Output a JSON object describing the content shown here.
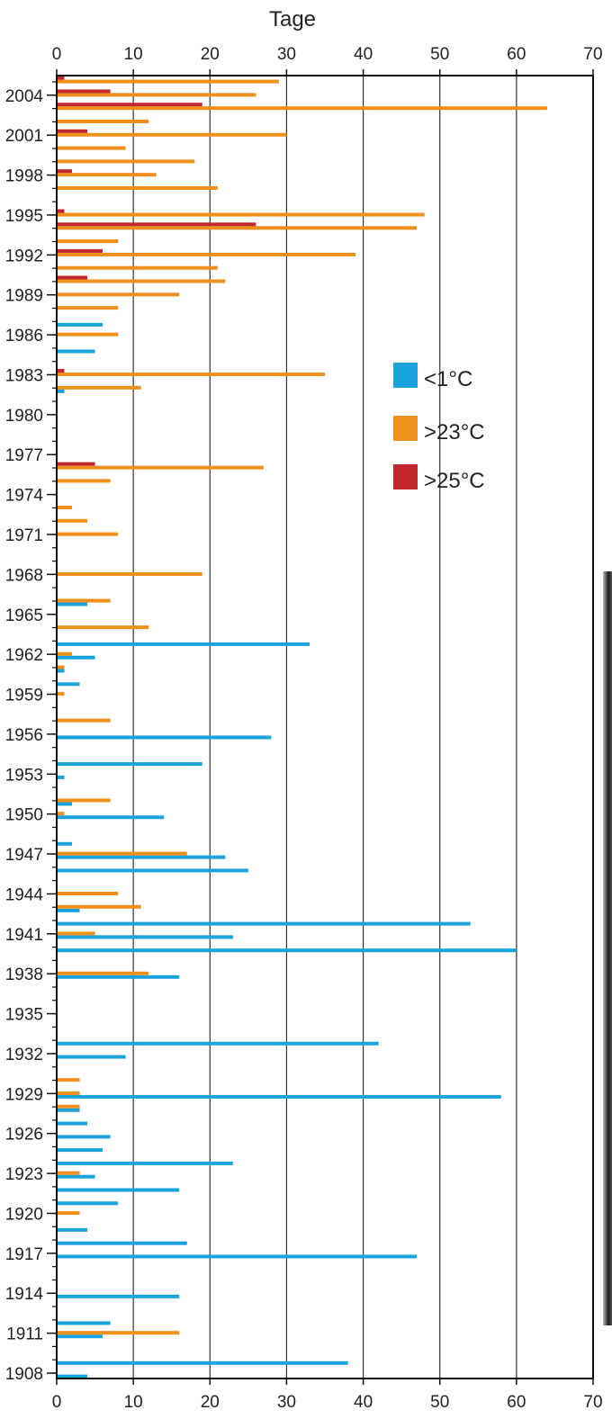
{
  "chart_data": {
    "type": "bar",
    "orientation": "horizontal",
    "title": "",
    "xlabel": "Tage",
    "ylabel": "",
    "xlim": [
      0,
      70
    ],
    "ylim": [
      1907,
      2005
    ],
    "x_ticks": [
      "0",
      "10",
      "20",
      "30",
      "40",
      "50",
      "60",
      "70"
    ],
    "y_tick_labels": [
      "2004",
      "2001",
      "1998",
      "1995",
      "1992",
      "1989",
      "1986",
      "1983",
      "1980",
      "1977",
      "1974",
      "1971",
      "1968",
      "1965",
      "1962",
      "1959",
      "1956",
      "1953",
      "1950",
      "1947",
      "1944",
      "1941",
      "1938",
      "1935",
      "1932",
      "1929",
      "1926",
      "1923",
      "1920",
      "1917",
      "1914",
      "1911",
      "1908"
    ],
    "grid": "vertical lines at each major x tick",
    "legend_position": "right, upper middle",
    "series": [
      {
        "name": "<1°C",
        "color": "#1aa3dc",
        "points": [
          {
            "year": 1908,
            "value": 4
          },
          {
            "year": 1909,
            "value": 38
          },
          {
            "year": 1911,
            "value": 6
          },
          {
            "year": 1912,
            "value": 7
          },
          {
            "year": 1914,
            "value": 16
          },
          {
            "year": 1917,
            "value": 47
          },
          {
            "year": 1918,
            "value": 17
          },
          {
            "year": 1919,
            "value": 4
          },
          {
            "year": 1921,
            "value": 8
          },
          {
            "year": 1922,
            "value": 16
          },
          {
            "year": 1923,
            "value": 5
          },
          {
            "year": 1924,
            "value": 23
          },
          {
            "year": 1925,
            "value": 6
          },
          {
            "year": 1926,
            "value": 7
          },
          {
            "year": 1927,
            "value": 4
          },
          {
            "year": 1928,
            "value": 3
          },
          {
            "year": 1929,
            "value": 58
          },
          {
            "year": 1932,
            "value": 9
          },
          {
            "year": 1933,
            "value": 42
          },
          {
            "year": 1938,
            "value": 16
          },
          {
            "year": 1940,
            "value": 60
          },
          {
            "year": 1941,
            "value": 23
          },
          {
            "year": 1942,
            "value": 54
          },
          {
            "year": 1943,
            "value": 3
          },
          {
            "year": 1946,
            "value": 25
          },
          {
            "year": 1947,
            "value": 22
          },
          {
            "year": 1948,
            "value": 2
          },
          {
            "year": 1950,
            "value": 14
          },
          {
            "year": 1951,
            "value": 2
          },
          {
            "year": 1953,
            "value": 1
          },
          {
            "year": 1954,
            "value": 19
          },
          {
            "year": 1956,
            "value": 28
          },
          {
            "year": 1960,
            "value": 3
          },
          {
            "year": 1961,
            "value": 1
          },
          {
            "year": 1962,
            "value": 5
          },
          {
            "year": 1963,
            "value": 33
          },
          {
            "year": 1966,
            "value": 4
          },
          {
            "year": 1987,
            "value": 6
          },
          {
            "year": 1982,
            "value": 1
          },
          {
            "year": 1985,
            "value": 5
          }
        ]
      },
      {
        "name": ">23°C",
        "color": "#ef8f1c",
        "points": [
          {
            "year": 1911,
            "value": 16
          },
          {
            "year": 1920,
            "value": 3
          },
          {
            "year": 1923,
            "value": 3
          },
          {
            "year": 1928,
            "value": 3
          },
          {
            "year": 1929,
            "value": 3
          },
          {
            "year": 1930,
            "value": 3
          },
          {
            "year": 1938,
            "value": 12
          },
          {
            "year": 1941,
            "value": 5
          },
          {
            "year": 1943,
            "value": 11
          },
          {
            "year": 1944,
            "value": 8
          },
          {
            "year": 1947,
            "value": 17
          },
          {
            "year": 1950,
            "value": 1
          },
          {
            "year": 1951,
            "value": 7
          },
          {
            "year": 1957,
            "value": 7
          },
          {
            "year": 1959,
            "value": 1
          },
          {
            "year": 1961,
            "value": 1
          },
          {
            "year": 1962,
            "value": 2
          },
          {
            "year": 1964,
            "value": 12
          },
          {
            "year": 1966,
            "value": 7
          },
          {
            "year": 1968,
            "value": 19
          },
          {
            "year": 1971,
            "value": 8
          },
          {
            "year": 1972,
            "value": 4
          },
          {
            "year": 1973,
            "value": 2
          },
          {
            "year": 1975,
            "value": 7
          },
          {
            "year": 1976,
            "value": 27
          },
          {
            "year": 1982,
            "value": 11
          },
          {
            "year": 1983,
            "value": 35
          },
          {
            "year": 1986,
            "value": 8
          },
          {
            "year": 1988,
            "value": 8
          },
          {
            "year": 1989,
            "value": 16
          },
          {
            "year": 1990,
            "value": 22
          },
          {
            "year": 1991,
            "value": 21
          },
          {
            "year": 1992,
            "value": 39
          },
          {
            "year": 1993,
            "value": 8
          },
          {
            "year": 1994,
            "value": 47
          },
          {
            "year": 1995,
            "value": 48
          },
          {
            "year": 1997,
            "value": 21
          },
          {
            "year": 1998,
            "value": 13
          },
          {
            "year": 1999,
            "value": 18
          },
          {
            "year": 2000,
            "value": 9
          },
          {
            "year": 2001,
            "value": 30
          },
          {
            "year": 2002,
            "value": 12
          },
          {
            "year": 2003,
            "value": 64
          },
          {
            "year": 2004,
            "value": 26
          },
          {
            "year": 2005,
            "value": 29
          }
        ]
      },
      {
        "name": ">25°C",
        "color": "#c1272d",
        "points": [
          {
            "year": 1976,
            "value": 5
          },
          {
            "year": 1983,
            "value": 1
          },
          {
            "year": 1990,
            "value": 4
          },
          {
            "year": 1992,
            "value": 6
          },
          {
            "year": 1994,
            "value": 26
          },
          {
            "year": 1995,
            "value": 1
          },
          {
            "year": 1998,
            "value": 2
          },
          {
            "year": 2001,
            "value": 4
          },
          {
            "year": 2003,
            "value": 19
          },
          {
            "year": 2004,
            "value": 7
          },
          {
            "year": 2005,
            "value": 1
          }
        ]
      }
    ]
  }
}
